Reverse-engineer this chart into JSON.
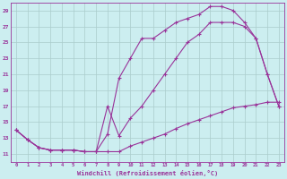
{
  "xlabel": "Windchill (Refroidissement éolien,°C)",
  "background_color": "#cceef0",
  "line_color": "#993399",
  "grid_color": "#aacccc",
  "ylim": [
    10,
    30
  ],
  "xlim": [
    -0.5,
    23.5
  ],
  "yticks": [
    11,
    13,
    15,
    17,
    19,
    21,
    23,
    25,
    27,
    29
  ],
  "xticks": [
    0,
    1,
    2,
    3,
    4,
    5,
    6,
    7,
    8,
    9,
    10,
    11,
    12,
    13,
    14,
    15,
    16,
    17,
    18,
    19,
    20,
    21,
    22,
    23
  ],
  "line_top_x": [
    0,
    1,
    2,
    3,
    4,
    5,
    6,
    7,
    8,
    9,
    10,
    11,
    12,
    13,
    14,
    15,
    16,
    17,
    18,
    19,
    20,
    21,
    22,
    23
  ],
  "line_top_y": [
    14.0,
    12.8,
    11.8,
    11.5,
    11.5,
    11.5,
    11.3,
    11.3,
    13.5,
    20.5,
    23.0,
    25.5,
    25.5,
    26.5,
    27.5,
    28.0,
    28.5,
    29.5,
    29.5,
    29.0,
    27.5,
    25.5,
    21.0,
    17.0
  ],
  "line_mid_x": [
    0,
    1,
    2,
    3,
    4,
    5,
    6,
    7,
    8,
    9,
    10,
    11,
    12,
    13,
    14,
    15,
    16,
    17,
    18,
    19,
    20,
    21,
    22,
    23
  ],
  "line_mid_y": [
    14.0,
    12.8,
    11.8,
    11.5,
    11.5,
    11.5,
    11.3,
    11.3,
    17.0,
    13.3,
    15.5,
    17.0,
    19.0,
    21.0,
    23.0,
    25.0,
    26.0,
    27.5,
    27.5,
    27.5,
    27.0,
    25.5,
    21.0,
    17.0
  ],
  "line_bot_x": [
    0,
    1,
    2,
    3,
    4,
    5,
    6,
    7,
    8,
    9,
    10,
    11,
    12,
    13,
    14,
    15,
    16,
    17,
    18,
    19,
    20,
    21,
    22,
    23
  ],
  "line_bot_y": [
    14.0,
    12.8,
    11.8,
    11.5,
    11.5,
    11.5,
    11.3,
    11.3,
    11.3,
    11.3,
    12.0,
    12.5,
    13.0,
    13.5,
    14.2,
    14.8,
    15.3,
    15.8,
    16.3,
    16.8,
    17.0,
    17.2,
    17.5,
    17.5
  ]
}
